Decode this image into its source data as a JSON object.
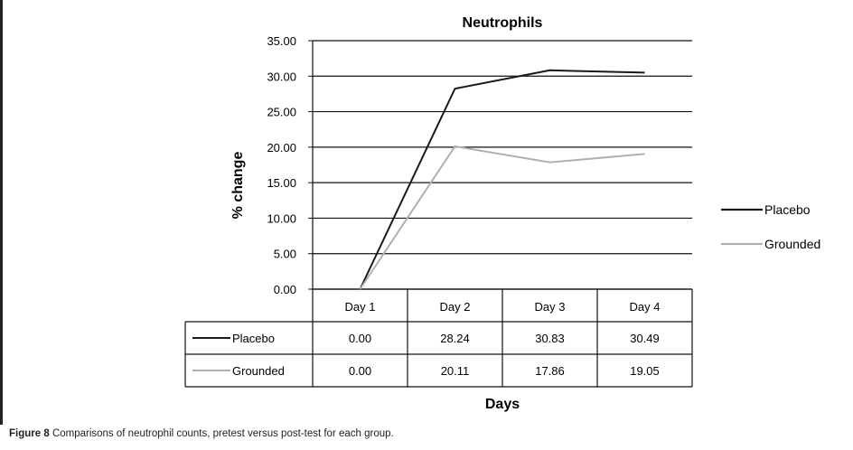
{
  "caption": {
    "label": "Figure 8",
    "text": "Comparisons of neutrophil counts, pretest versus post-test for each group."
  },
  "chart_data": {
    "type": "line",
    "title": "Neutrophils",
    "xlabel": "Days",
    "ylabel": "% change",
    "categories": [
      "Day 1",
      "Day 2",
      "Day 3",
      "Day 4"
    ],
    "ylim": [
      0,
      35
    ],
    "yticks": [
      "0.00",
      "5.00",
      "10.00",
      "15.00",
      "20.00",
      "25.00",
      "30.00",
      "35.00"
    ],
    "grid": true,
    "legend_position": "right",
    "series": [
      {
        "name": "Placebo",
        "color": "#1a1a1a",
        "values": [
          0.0,
          28.24,
          30.83,
          30.49
        ],
        "table_values": [
          "0.00",
          "28.24",
          "30.83",
          "30.49"
        ]
      },
      {
        "name": "Grounded",
        "color": "#b0b0b0",
        "values": [
          0.0,
          20.11,
          17.86,
          19.05
        ],
        "table_values": [
          "0.00",
          "20.11",
          "17.86",
          "19.05"
        ]
      }
    ]
  }
}
